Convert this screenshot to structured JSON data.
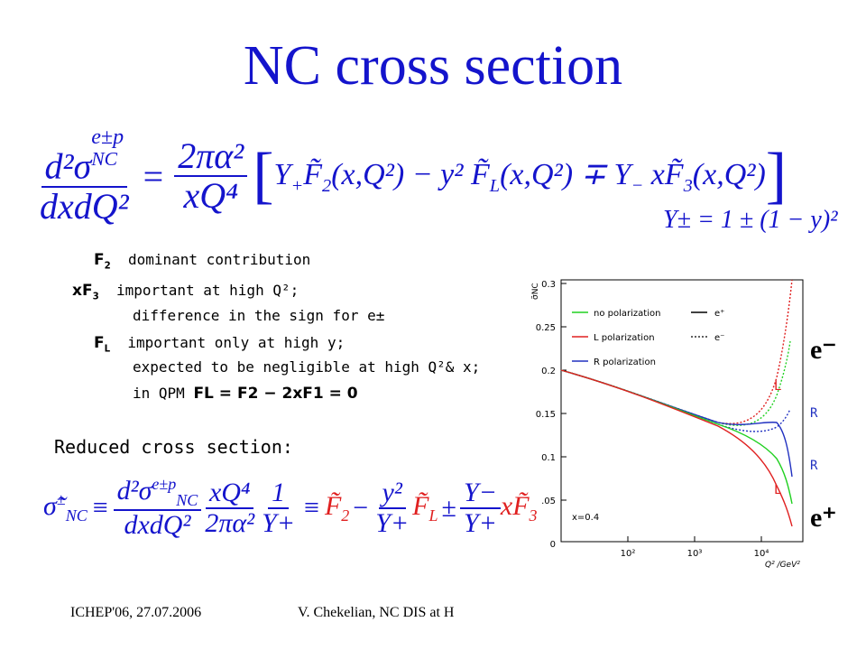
{
  "title": "NC cross section",
  "main_formula": {
    "lhs_num": "d²σ",
    "lhs_num_sup": "e±p",
    "lhs_num_sub": "NC",
    "lhs_den": "dxdQ²",
    "equals": "=",
    "coef_num": "2πα²",
    "coef_den": "xQ⁴",
    "bracket_body_1": "Y",
    "bracket_body_1_sub": "+",
    "f2": "F̃",
    "f2_sub": "2",
    "f2_args": "(x,Q²) − y²",
    "fl": "F̃",
    "fl_sub": "L",
    "fl_args": "(x,Q²) ∓ Y",
    "fl_args_sub": "−",
    "xf3": "xF̃",
    "xf3_sub": "3",
    "xf3_args": "(x,Q²)"
  },
  "y_def": "Y± = 1 ± (1 − y)²",
  "notes": {
    "f2_label": "F",
    "f2_label_sub": "2",
    "f2_text": "dominant contribution",
    "xf3_label": "xF",
    "xf3_label_sub": "3",
    "xf3_text": "important at high Q²;",
    "xf3_text2": "difference in the sign for e±",
    "fl_label": "F",
    "fl_label_sub": "L",
    "fl_text": "important only at high y;",
    "fl_text2": "expected to be negligible at high Q²& x;",
    "qpm_prefix": "in QPM",
    "qpm_formula": "FL = F2 − 2xF1 = 0"
  },
  "reduced_label": "Reduced cross section:",
  "reduced_formula": {
    "lhs": "σ̃",
    "lhs_sup": "±",
    "lhs_sub": "NC",
    "equiv": "≡",
    "num1": "d²σ",
    "num1_sup": "e±p",
    "num1_sub": "NC",
    "den1": "dxdQ²",
    "num2": "xQ⁴",
    "den2": "2πα²",
    "num3": "1",
    "den3": "Y+",
    "equiv2": "≡",
    "f2": "F̃",
    "f2_sub": "2",
    "minus1": "−",
    "num4": "y²",
    "den4": "Y+",
    "fl": "F̃",
    "fl_sub": "L",
    "sign": "±",
    "num5": "Y−",
    "den5": "Y+",
    "xf3": "xF̃",
    "xf3_sub": "3"
  },
  "plot": {
    "y_axis_title": "σ̃NC",
    "y_ticks": [
      "0.3",
      "0.25",
      "0.2",
      "0.15",
      "0.1",
      ".05",
      "0"
    ],
    "x_ticks": [
      "10²",
      "10³",
      "10⁴"
    ],
    "x_axis_title": "Q² /GeV²",
    "legend": {
      "no_pol": "no polarization",
      "l_pol": "L polarization",
      "r_pol": "R polarization",
      "e_plus": "e⁺",
      "e_minus": "e⁻"
    },
    "annotation": "x=0.4",
    "curve_labels": [
      "L",
      "R",
      "R",
      "L"
    ],
    "colors": {
      "green": "#20d020",
      "red": "#e02020",
      "blue": "#2030c0"
    }
  },
  "side_labels": {
    "e_minus": "e⁻",
    "e_plus": "e⁺"
  },
  "footer": {
    "left": "ICHEP'06, 27.07.2006",
    "middle": "V. Chekelian,  NC DIS at H"
  }
}
